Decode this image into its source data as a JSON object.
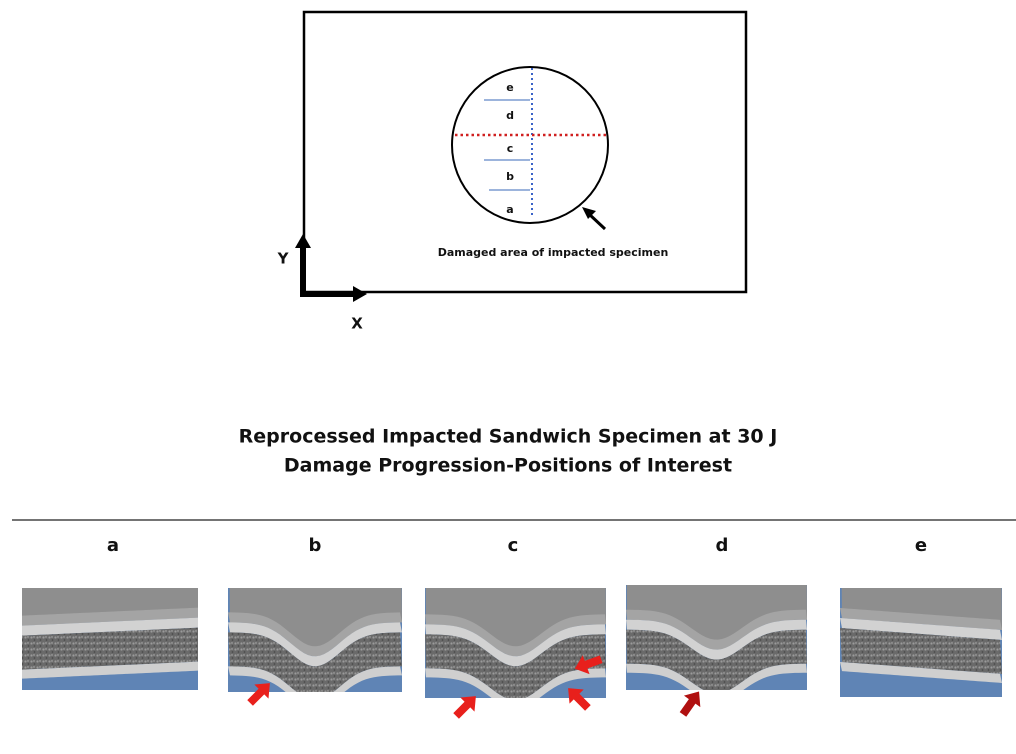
{
  "diagram": {
    "circle_labels": [
      "e",
      "d",
      "c",
      "b",
      "a"
    ],
    "annotation": "Damaged area of impacted specimen",
    "axes": {
      "y": "Y",
      "x": "X"
    }
  },
  "title": {
    "line1": "Reprocessed Impacted Sandwich Specimen at 30 J",
    "line2": "Damage Progression-Positions of Interest"
  },
  "panels": [
    {
      "label": "a"
    },
    {
      "label": "b"
    },
    {
      "label": "c"
    },
    {
      "label": "d"
    },
    {
      "label": "e"
    }
  ]
}
